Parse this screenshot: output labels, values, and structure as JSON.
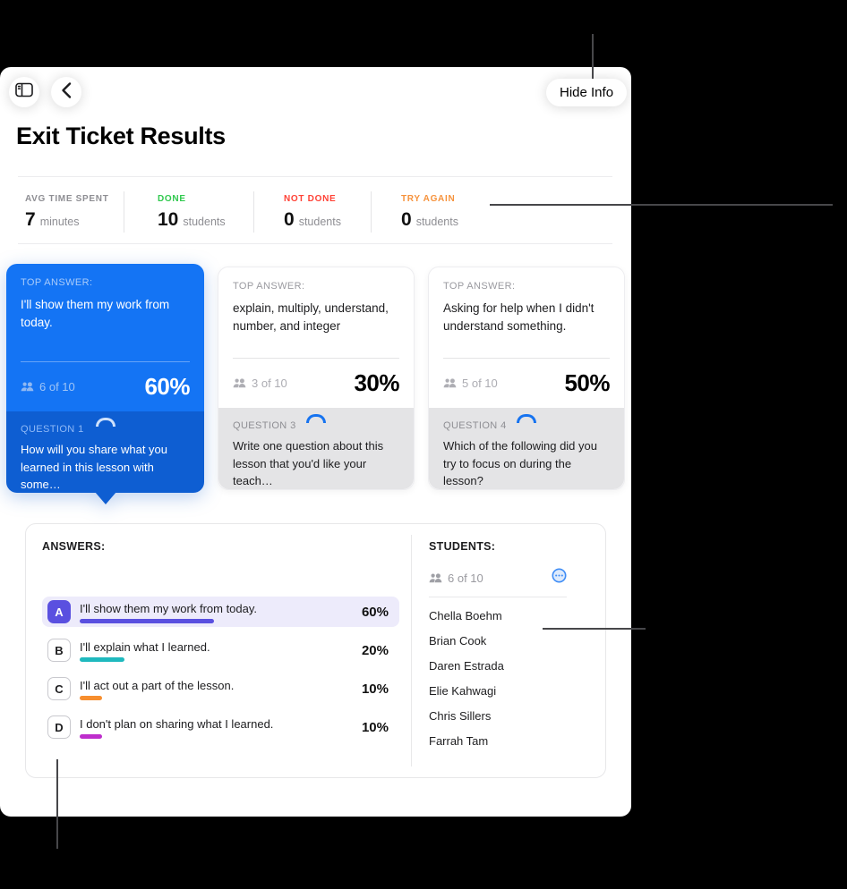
{
  "header": {
    "title": "Exit Ticket Results",
    "hide_info_label": "Hide Info"
  },
  "stats": {
    "items": [
      {
        "label": "AVG TIME SPENT",
        "label_color": "#8e8e93",
        "value": "7",
        "unit": "minutes"
      },
      {
        "label": "DONE",
        "label_color": "#30c94e",
        "value": "10",
        "unit": "students"
      },
      {
        "label": "NOT DONE",
        "label_color": "#ff4236",
        "value": "0",
        "unit": "students"
      },
      {
        "label": "TRY AGAIN",
        "label_color": "#f6923c",
        "value": "0",
        "unit": "students"
      }
    ]
  },
  "question_cards": [
    {
      "top_answer_label": "TOP ANSWER:",
      "answer": "I'll show them my work from today.",
      "count": "6 of 10",
      "percent": "60%",
      "question_label": "QUESTION 1",
      "question": "How will you share what you learned in this lesson with some…",
      "selected": true
    },
    {
      "top_answer_label": "TOP ANSWER:",
      "answer": "explain, multiply, understand, number, and integer",
      "count": "3 of 10",
      "percent": "30%",
      "question_label": "QUESTION 3",
      "question": "Write one question about this lesson that you'd like your teach…",
      "selected": false
    },
    {
      "top_answer_label": "TOP ANSWER:",
      "answer": "Asking for help when I didn't understand something.",
      "count": "5 of 10",
      "percent": "50%",
      "question_label": "QUESTION 4",
      "question": "Which of the following did you try to focus on during the lesson?",
      "selected": false
    }
  ],
  "answers_panel": {
    "header": "ANSWERS:",
    "rows": [
      {
        "letter": "A",
        "text": "I'll show them my work from today.",
        "percent": 60,
        "percent_label": "60%",
        "bar_color": "#5a50e0",
        "highlighted": true
      },
      {
        "letter": "B",
        "text": "I'll explain what I learned.",
        "percent": 20,
        "percent_label": "20%",
        "bar_color": "#1fb9be",
        "highlighted": false
      },
      {
        "letter": "C",
        "text": "I'll act out a part of the lesson.",
        "percent": 10,
        "percent_label": "10%",
        "bar_color": "#f78e2e",
        "highlighted": false
      },
      {
        "letter": "D",
        "text": "I don't plan on sharing what I learned.",
        "percent": 10,
        "percent_label": "10%",
        "bar_color": "#be2ecc",
        "highlighted": false
      }
    ]
  },
  "students_panel": {
    "header": "STUDENTS:",
    "count": "6 of 10",
    "names": [
      "Chella Boehm",
      "Brian Cook",
      "Daren Estrada",
      "Elie Kahwagi",
      "Chris Sillers",
      "Farrah Tam"
    ]
  },
  "colors": {
    "selected_card_top": "#1474f4",
    "selected_card_bottom": "#0e5ed2",
    "highlight_row_bg": "#edebfb",
    "more_icon_blue": "#3f8df6"
  }
}
